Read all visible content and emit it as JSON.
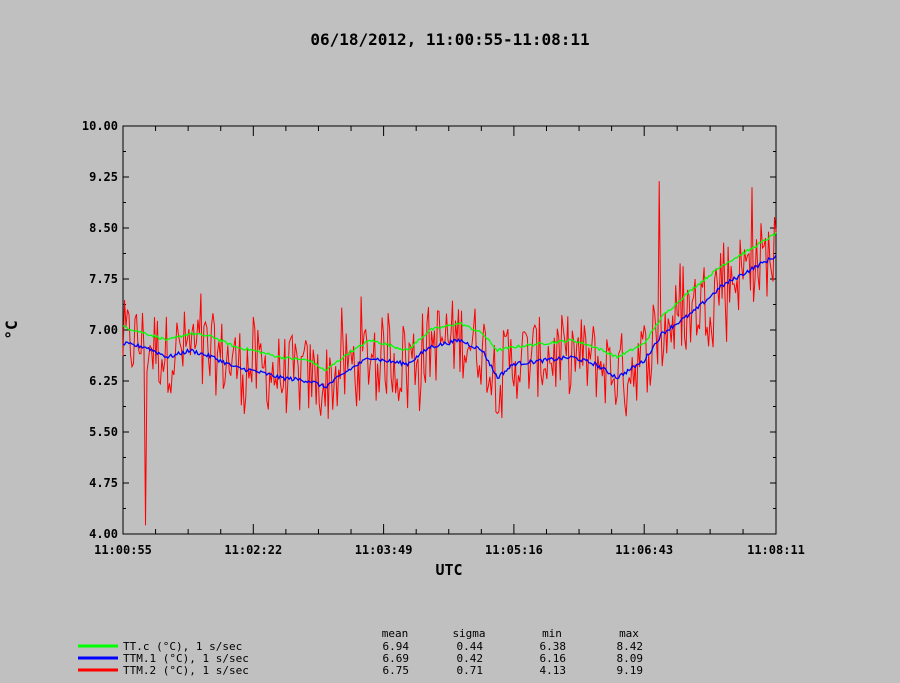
{
  "chart_data": {
    "type": "line",
    "title": "06/18/2012, 11:00:55-11:08:11",
    "xlabel": "UTC",
    "ylabel": "°C",
    "ylim": [
      4.0,
      10.0
    ],
    "xlim": [
      "11:00:55",
      "11:08:11"
    ],
    "x_ticks": [
      "11:00:55",
      "11:02:22",
      "11:03:49",
      "11:05:16",
      "11:06:43",
      "11:08:11"
    ],
    "y_ticks": [
      "4.00",
      "4.75",
      "5.50",
      "6.25",
      "7.00",
      "7.75",
      "8.50",
      "9.25",
      "10.00"
    ],
    "sample_interval_s": 1,
    "series": [
      {
        "name": "TT.c (°C), 1 s/sec",
        "color": "#00ff00",
        "stats": {
          "mean": "6.94",
          "sigma": "0.44",
          "min": "6.38",
          "max": "8.42"
        },
        "profile": [
          [
            "11:00:55",
            7.05
          ],
          [
            "11:01:10",
            6.95
          ],
          [
            "11:01:25",
            6.85
          ],
          [
            "11:01:40",
            6.95
          ],
          [
            "11:01:55",
            6.9
          ],
          [
            "11:02:10",
            6.75
          ],
          [
            "11:02:22",
            6.7
          ],
          [
            "11:02:40",
            6.6
          ],
          [
            "11:03:00",
            6.55
          ],
          [
            "11:03:10",
            6.4
          ],
          [
            "11:03:25",
            6.65
          ],
          [
            "11:03:40",
            6.85
          ],
          [
            "11:03:49",
            6.8
          ],
          [
            "11:04:05",
            6.7
          ],
          [
            "11:04:20",
            7.0
          ],
          [
            "11:04:40",
            7.1
          ],
          [
            "11:04:55",
            6.95
          ],
          [
            "11:05:05",
            6.7
          ],
          [
            "11:05:16",
            6.75
          ],
          [
            "11:05:35",
            6.8
          ],
          [
            "11:05:55",
            6.85
          ],
          [
            "11:06:10",
            6.75
          ],
          [
            "11:06:25",
            6.6
          ],
          [
            "11:06:43",
            6.8
          ],
          [
            "11:06:55",
            7.2
          ],
          [
            "11:07:15",
            7.6
          ],
          [
            "11:07:35",
            7.95
          ],
          [
            "11:07:55",
            8.2
          ],
          [
            "11:08:11",
            8.42
          ]
        ]
      },
      {
        "name": "TTM.1 (°C), 1 s/sec",
        "color": "#0000ff",
        "stats": {
          "mean": "6.69",
          "sigma": "0.42",
          "min": "6.16",
          "max": "8.09"
        },
        "profile": [
          [
            "11:00:55",
            6.8
          ],
          [
            "11:01:10",
            6.75
          ],
          [
            "11:01:25",
            6.6
          ],
          [
            "11:01:40",
            6.7
          ],
          [
            "11:01:55",
            6.6
          ],
          [
            "11:02:10",
            6.45
          ],
          [
            "11:02:22",
            6.4
          ],
          [
            "11:02:40",
            6.3
          ],
          [
            "11:03:00",
            6.25
          ],
          [
            "11:03:10",
            6.16
          ],
          [
            "11:03:25",
            6.4
          ],
          [
            "11:03:40",
            6.6
          ],
          [
            "11:03:49",
            6.55
          ],
          [
            "11:04:05",
            6.5
          ],
          [
            "11:04:20",
            6.75
          ],
          [
            "11:04:40",
            6.85
          ],
          [
            "11:04:55",
            6.7
          ],
          [
            "11:05:05",
            6.3
          ],
          [
            "11:05:16",
            6.5
          ],
          [
            "11:05:35",
            6.55
          ],
          [
            "11:05:55",
            6.6
          ],
          [
            "11:06:10",
            6.5
          ],
          [
            "11:06:25",
            6.3
          ],
          [
            "11:06:43",
            6.55
          ],
          [
            "11:06:55",
            6.95
          ],
          [
            "11:07:15",
            7.25
          ],
          [
            "11:07:35",
            7.65
          ],
          [
            "11:07:55",
            7.9
          ],
          [
            "11:08:11",
            8.09
          ]
        ]
      },
      {
        "name": "TTM.2 (°C), 1 s/sec",
        "color": "#ff0000",
        "stats": {
          "mean": "6.75",
          "sigma": "0.71",
          "min": "4.13",
          "max": "9.19"
        },
        "noise_amplitude": 0.6,
        "extremes": [
          [
            "11:01:10",
            4.13
          ],
          [
            "11:06:53",
            9.19
          ],
          [
            "11:07:55",
            9.1
          ]
        ]
      }
    ],
    "stats_headers": [
      "mean",
      "sigma",
      "min",
      "max"
    ],
    "grid": false,
    "legend_position": "bottom-left"
  }
}
